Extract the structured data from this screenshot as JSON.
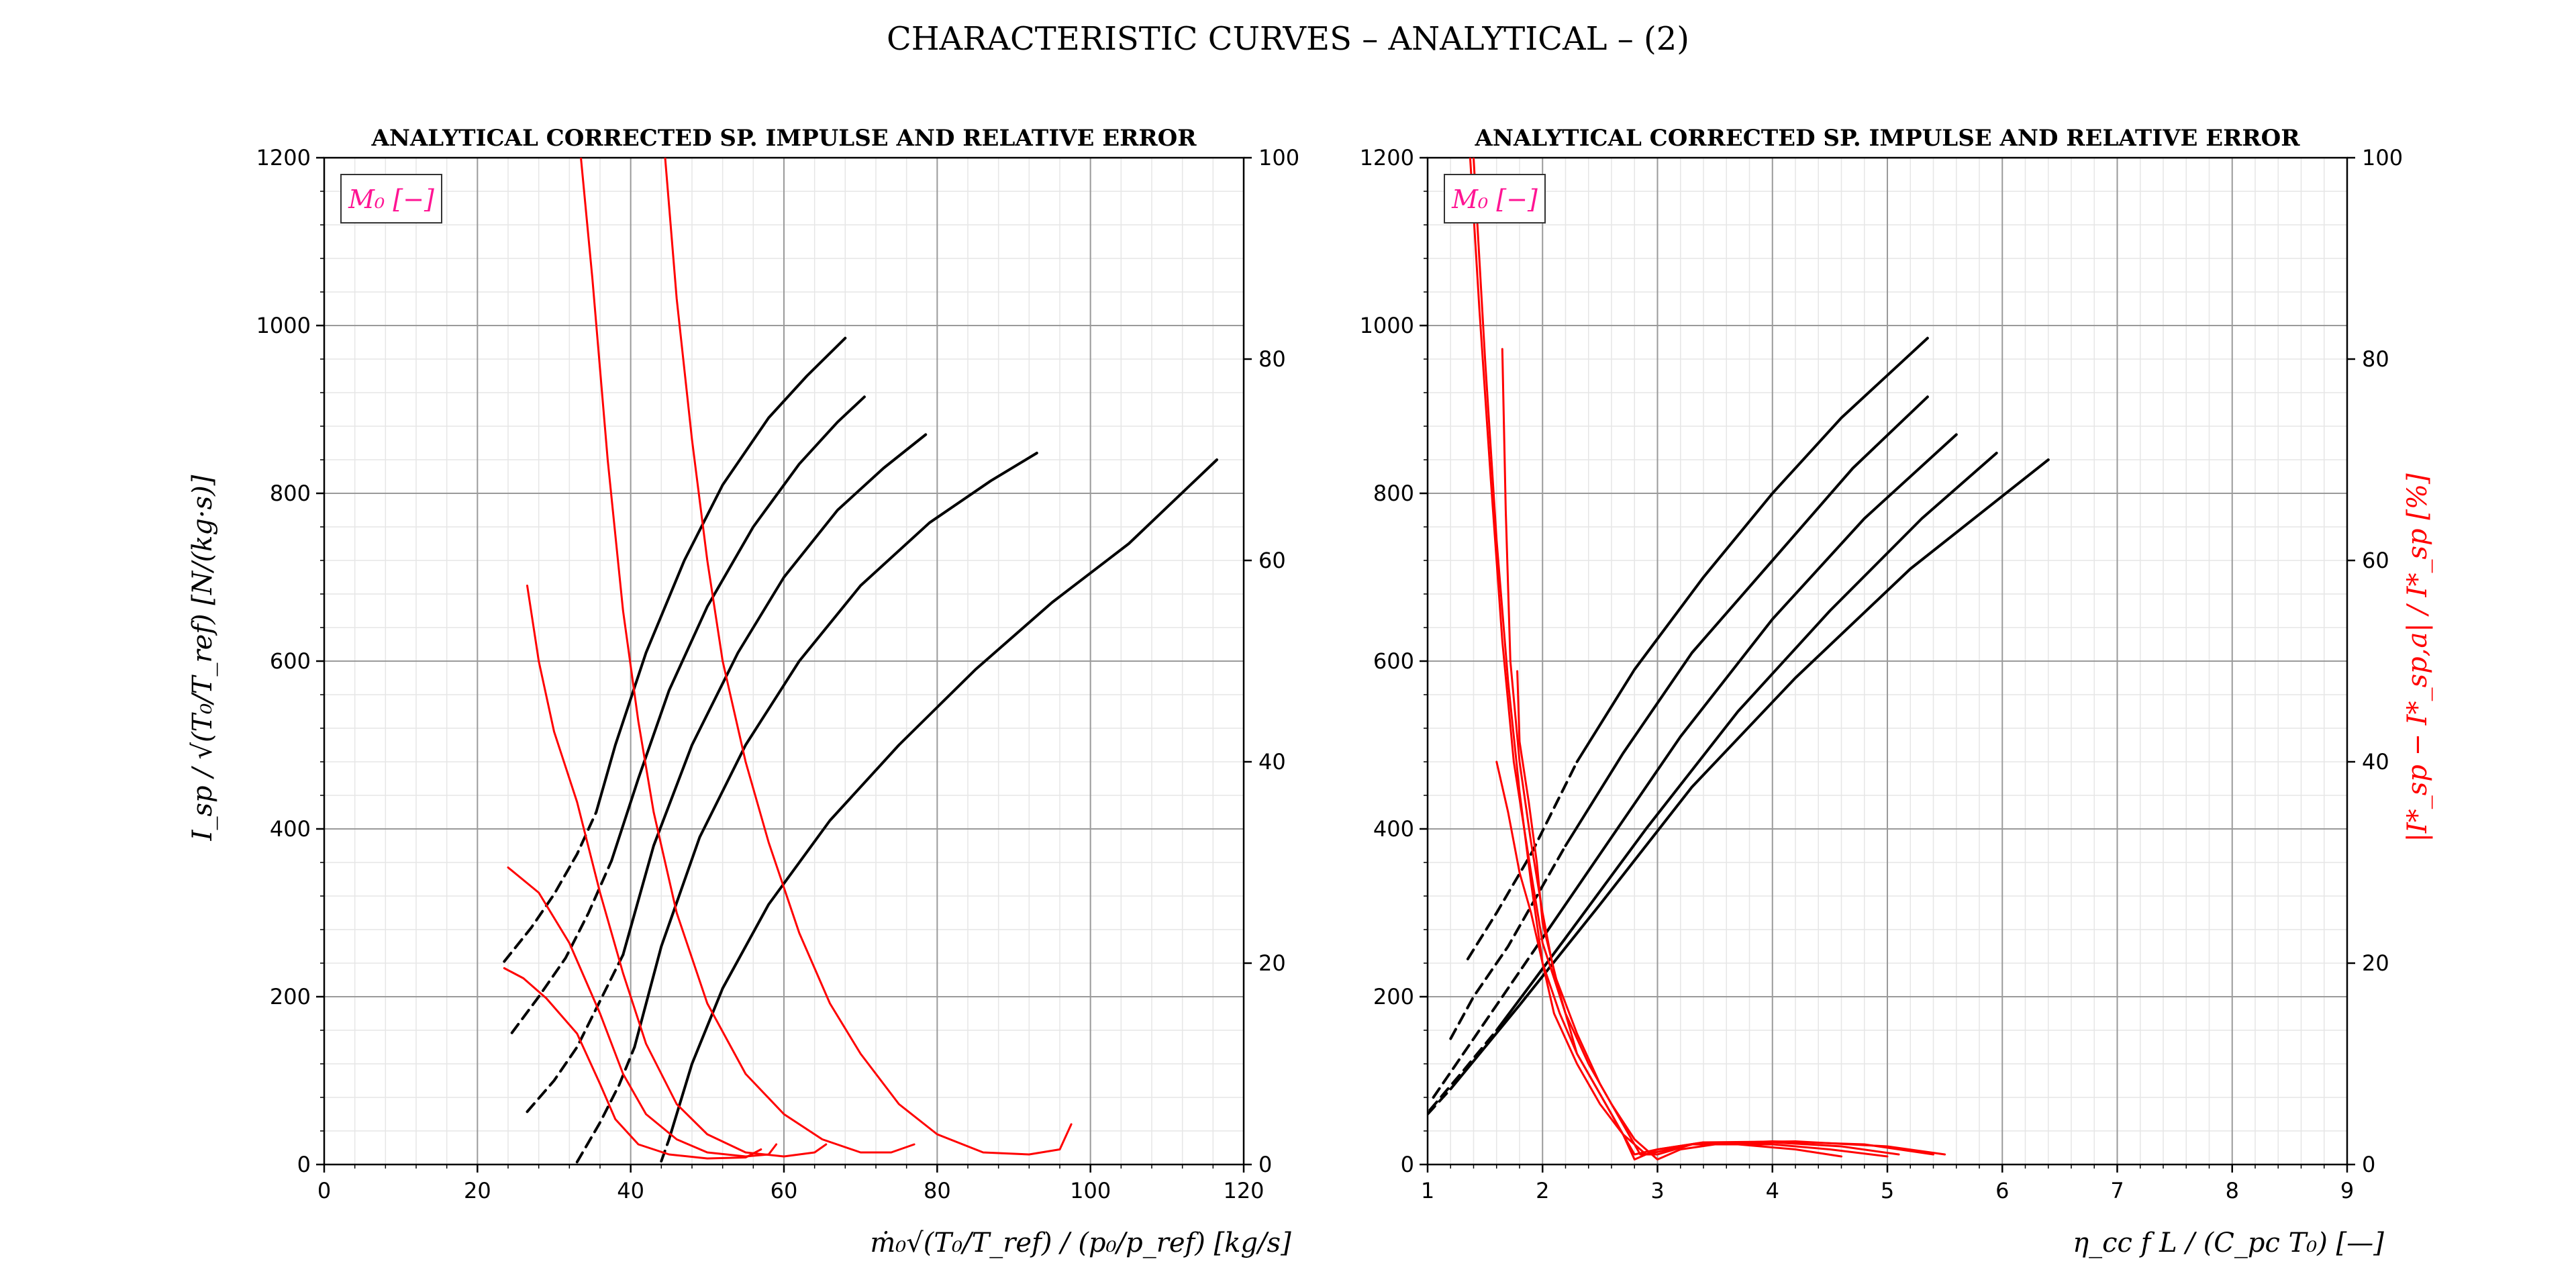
{
  "figure": {
    "title": "CHARACTERISTIC CURVES  – ANALYTICAL – (2)"
  },
  "labels": {
    "left_xlabel": "ṁ₀√(T₀/T_ref) / (p₀/p_ref)  [kg/s]",
    "left_ylabel": "I_sp / √(T₀/T_ref)  [N/(kg·s)]",
    "right_xlabel": "η_cc f L / (C_pc T₀)  [—]",
    "right_y2label": "|I*_sp − I*_sp,a| / I*_sp  [%]",
    "legend_text": "M₀ [−]"
  },
  "colors": {
    "isp": "#000000",
    "error": "#ff0000",
    "legend": "#ff1493",
    "grid_major": "#9a9a9a",
    "grid_minor": "#e6e6e6"
  },
  "chart_data": [
    {
      "type": "line",
      "title": "ANALYTICAL CORRECTED SP. IMPULSE AND RELATIVE ERROR",
      "xlabel": "ṁ₀√(T₀/T_ref) / (p₀/p_ref)  [kg/s]",
      "ylabel": "I_sp / √(T₀/T_ref)  [N/(kg·s)]",
      "y2label": "",
      "xlim": [
        0,
        120
      ],
      "ylim": [
        0,
        1200
      ],
      "y2lim": [
        0,
        100
      ],
      "xticks": [
        0,
        20,
        40,
        60,
        80,
        100,
        120
      ],
      "yticks": [
        0,
        200,
        400,
        600,
        800,
        1000,
        1200
      ],
      "y2ticks": [
        0,
        20,
        40,
        60,
        80,
        100
      ],
      "xminor": 4,
      "yminor": 40,
      "grid": true,
      "legend": {
        "text": "M₀ [−]",
        "location": "top-left"
      },
      "isp_series": [
        {
          "dashed": [
            [
              23.5,
              242
            ],
            [
              27,
              282
            ],
            [
              30,
              322
            ],
            [
              33,
              370
            ],
            [
              35.5,
              420
            ]
          ],
          "solid": [
            [
              35.5,
              420
            ],
            [
              38,
              500
            ],
            [
              42,
              610
            ],
            [
              47,
              720
            ],
            [
              52,
              810
            ],
            [
              58,
              890
            ],
            [
              63,
              940
            ],
            [
              68,
              985
            ]
          ]
        },
        {
          "dashed": [
            [
              24.5,
              157
            ],
            [
              28,
              200
            ],
            [
              31.5,
              246
            ],
            [
              34.5,
              300
            ],
            [
              37.5,
              362
            ]
          ],
          "solid": [
            [
              37.5,
              362
            ],
            [
              41,
              460
            ],
            [
              45,
              565
            ],
            [
              50,
              665
            ],
            [
              56,
              760
            ],
            [
              62,
              835
            ],
            [
              67,
              885
            ],
            [
              70.5,
              915
            ]
          ]
        },
        {
          "dashed": [
            [
              26.5,
              63
            ],
            [
              30,
              100
            ],
            [
              33,
              140
            ],
            [
              36,
              195
            ],
            [
              39,
              250
            ]
          ],
          "solid": [
            [
              39,
              250
            ],
            [
              43,
              380
            ],
            [
              48,
              500
            ],
            [
              54,
              610
            ],
            [
              60,
              700
            ],
            [
              67,
              780
            ],
            [
              73,
              830
            ],
            [
              78.5,
              870
            ]
          ]
        },
        {
          "dashed": [
            [
              33,
              3
            ],
            [
              36,
              50
            ],
            [
              38.5,
              95
            ],
            [
              40.5,
              140
            ]
          ],
          "solid": [
            [
              40.5,
              140
            ],
            [
              44,
              260
            ],
            [
              49,
              390
            ],
            [
              55,
              500
            ],
            [
              62,
              600
            ],
            [
              70,
              690
            ],
            [
              79,
              765
            ],
            [
              87,
              815
            ],
            [
              93,
              848
            ]
          ]
        },
        {
          "dashed": [
            [
              44,
              4
            ],
            [
              45,
              30
            ]
          ],
          "solid": [
            [
              45,
              30
            ],
            [
              48,
              120
            ],
            [
              52,
              210
            ],
            [
              58,
              310
            ],
            [
              66,
              410
            ],
            [
              75,
              500
            ],
            [
              85,
              590
            ],
            [
              95,
              670
            ],
            [
              105,
              740
            ],
            [
              116.5,
              840
            ]
          ]
        }
      ],
      "error_series": [
        [
          [
            23.5,
            19.5
          ],
          [
            26,
            18.5
          ],
          [
            29,
            16.5
          ],
          [
            33,
            13
          ],
          [
            36,
            8
          ],
          [
            38,
            4.5
          ],
          [
            41,
            2
          ],
          [
            45,
            1
          ],
          [
            50,
            0.6
          ],
          [
            55,
            0.7
          ],
          [
            57,
            1.5
          ]
        ],
        [
          [
            24,
            29.5
          ],
          [
            28,
            27
          ],
          [
            32,
            22
          ],
          [
            36,
            15
          ],
          [
            39,
            9
          ],
          [
            42,
            5
          ],
          [
            46,
            2.5
          ],
          [
            50,
            1.2
          ],
          [
            55,
            0.8
          ],
          [
            58,
            1
          ],
          [
            59,
            2
          ]
        ],
        [
          [
            26.5,
            57.5
          ],
          [
            28,
            50
          ],
          [
            30,
            43
          ],
          [
            33,
            36
          ],
          [
            36,
            27
          ],
          [
            39,
            19
          ],
          [
            42,
            12
          ],
          [
            46,
            6
          ],
          [
            50,
            3
          ],
          [
            55,
            1.2
          ],
          [
            60,
            0.8
          ],
          [
            64,
            1.2
          ],
          [
            65.5,
            2
          ]
        ],
        [
          [
            33.5,
            100
          ],
          [
            35,
            88
          ],
          [
            37,
            70
          ],
          [
            39,
            55
          ],
          [
            41,
            44
          ],
          [
            43,
            35
          ],
          [
            46,
            25
          ],
          [
            50,
            16
          ],
          [
            55,
            9
          ],
          [
            60,
            5
          ],
          [
            65,
            2.5
          ],
          [
            70,
            1.2
          ],
          [
            74,
            1.2
          ],
          [
            77,
            2
          ]
        ],
        [
          [
            44.5,
            100
          ],
          [
            46,
            86
          ],
          [
            48,
            72
          ],
          [
            50,
            60
          ],
          [
            52,
            50
          ],
          [
            55,
            40
          ],
          [
            58,
            32
          ],
          [
            62,
            23
          ],
          [
            66,
            16
          ],
          [
            70,
            11
          ],
          [
            75,
            6
          ],
          [
            80,
            3
          ],
          [
            86,
            1.2
          ],
          [
            92,
            1
          ],
          [
            96,
            1.5
          ],
          [
            97.5,
            4
          ]
        ]
      ]
    },
    {
      "type": "line",
      "title": "ANALYTICAL CORRECTED SP. IMPULSE AND RELATIVE ERROR",
      "xlabel": "η_cc f L / (C_pc T₀)  [—]",
      "ylabel": "",
      "y2label": "|I*_sp − I*_sp,a| / I*_sp  [%]",
      "xlim": [
        1,
        9
      ],
      "ylim": [
        0,
        1200
      ],
      "y2lim": [
        0,
        100
      ],
      "xticks": [
        1,
        2,
        3,
        4,
        5,
        6,
        7,
        8,
        9
      ],
      "yticks": [
        0,
        200,
        400,
        600,
        800,
        1000,
        1200
      ],
      "y2ticks": [
        0,
        20,
        40,
        60,
        80,
        100
      ],
      "xminor": 0.2,
      "yminor": 40,
      "grid": true,
      "legend": {
        "text": "M₀ [−]",
        "location": "top-left"
      },
      "isp_series": [
        {
          "dashed": [
            [
              1.35,
              245
            ],
            [
              1.6,
              300
            ],
            [
              1.9,
              370
            ],
            [
              2.3,
              480
            ]
          ],
          "solid": [
            [
              2.3,
              480
            ],
            [
              2.8,
              590
            ],
            [
              3.4,
              700
            ],
            [
              4.0,
              800
            ],
            [
              4.6,
              890
            ],
            [
              5.35,
              985
            ]
          ]
        },
        {
          "dashed": [
            [
              1.2,
              150
            ],
            [
              1.4,
              200
            ],
            [
              1.7,
              260
            ],
            [
              2.2,
              380
            ]
          ],
          "solid": [
            [
              2.2,
              380
            ],
            [
              2.7,
              490
            ],
            [
              3.3,
              610
            ],
            [
              4.0,
              720
            ],
            [
              4.7,
              830
            ],
            [
              5.35,
              915
            ]
          ]
        },
        {
          "dashed": [
            [
              1.05,
              80
            ],
            [
              1.3,
              130
            ],
            [
              1.6,
              190
            ],
            [
              2.0,
              270
            ]
          ],
          "solid": [
            [
              2.0,
              270
            ],
            [
              2.6,
              390
            ],
            [
              3.2,
              510
            ],
            [
              4.0,
              650
            ],
            [
              4.8,
              770
            ],
            [
              5.6,
              870
            ]
          ]
        },
        {
          "dashed": [
            [
              1.02,
              65
            ],
            [
              1.3,
              110
            ],
            [
              1.6,
              160
            ]
          ],
          "solid": [
            [
              1.6,
              160
            ],
            [
              2.2,
              270
            ],
            [
              2.9,
              400
            ],
            [
              3.7,
              540
            ],
            [
              4.5,
              660
            ],
            [
              5.3,
              770
            ],
            [
              5.95,
              848
            ]
          ]
        },
        {
          "dashed": [
            [
              1.0,
              60
            ],
            [
              1.2,
              90
            ]
          ],
          "solid": [
            [
              1.2,
              90
            ],
            [
              1.8,
              190
            ],
            [
              2.5,
              310
            ],
            [
              3.3,
              450
            ],
            [
              4.2,
              580
            ],
            [
              5.2,
              710
            ],
            [
              6.4,
              840
            ]
          ]
        }
      ],
      "error_series": [
        [
          [
            1.4,
            100
          ],
          [
            1.5,
            80
          ],
          [
            1.6,
            62
          ],
          [
            1.7,
            48
          ],
          [
            1.8,
            37
          ],
          [
            1.9,
            28
          ],
          [
            2.0,
            20
          ],
          [
            2.1,
            15
          ],
          [
            2.3,
            10
          ],
          [
            2.5,
            6
          ],
          [
            2.7,
            3
          ],
          [
            2.9,
            1
          ],
          [
            3.1,
            1.5
          ],
          [
            3.3,
            2
          ],
          [
            3.7,
            2
          ],
          [
            4.2,
            1.5
          ],
          [
            4.6,
            0.8
          ]
        ],
        [
          [
            1.37,
            100
          ],
          [
            1.45,
            85
          ],
          [
            1.55,
            68
          ],
          [
            1.65,
            52
          ],
          [
            1.75,
            40
          ],
          [
            1.9,
            29
          ],
          [
            2.0,
            22
          ],
          [
            2.2,
            15
          ],
          [
            2.4,
            10
          ],
          [
            2.6,
            6
          ],
          [
            2.8,
            2.5
          ],
          [
            3.0,
            0.5
          ],
          [
            3.2,
            1.5
          ],
          [
            3.5,
            2
          ],
          [
            4.0,
            2
          ],
          [
            4.5,
            1.5
          ],
          [
            5.0,
            0.8
          ]
        ],
        [
          [
            1.6,
            40
          ],
          [
            1.7,
            35
          ],
          [
            1.8,
            29
          ],
          [
            1.9,
            25
          ],
          [
            2.0,
            20
          ],
          [
            2.15,
            15
          ],
          [
            2.3,
            11
          ],
          [
            2.5,
            7
          ],
          [
            2.7,
            3
          ],
          [
            2.8,
            1
          ],
          [
            3.0,
            1.5
          ],
          [
            3.4,
            2.2
          ],
          [
            4.0,
            2.2
          ],
          [
            4.6,
            1.8
          ],
          [
            5.1,
            1
          ]
        ],
        [
          [
            1.65,
            81
          ],
          [
            1.68,
            65
          ],
          [
            1.72,
            50
          ],
          [
            1.8,
            40
          ],
          [
            1.9,
            32
          ],
          [
            2.0,
            25
          ],
          [
            2.1,
            19
          ],
          [
            2.3,
            13
          ],
          [
            2.5,
            8
          ],
          [
            2.7,
            4
          ],
          [
            2.85,
            1
          ],
          [
            3.0,
            1
          ],
          [
            3.3,
            2
          ],
          [
            4.0,
            2.3
          ],
          [
            4.8,
            2
          ],
          [
            5.4,
            1
          ]
        ],
        [
          [
            1.78,
            49
          ],
          [
            1.8,
            42
          ],
          [
            1.88,
            36
          ],
          [
            1.95,
            30
          ],
          [
            2.0,
            24
          ],
          [
            2.15,
            17
          ],
          [
            2.3,
            11
          ],
          [
            2.5,
            7
          ],
          [
            2.7,
            3
          ],
          [
            2.8,
            0.5
          ],
          [
            3.0,
            1.5
          ],
          [
            3.4,
            2.2
          ],
          [
            4.2,
            2.3
          ],
          [
            5.0,
            1.8
          ],
          [
            5.5,
            1
          ]
        ]
      ]
    }
  ]
}
